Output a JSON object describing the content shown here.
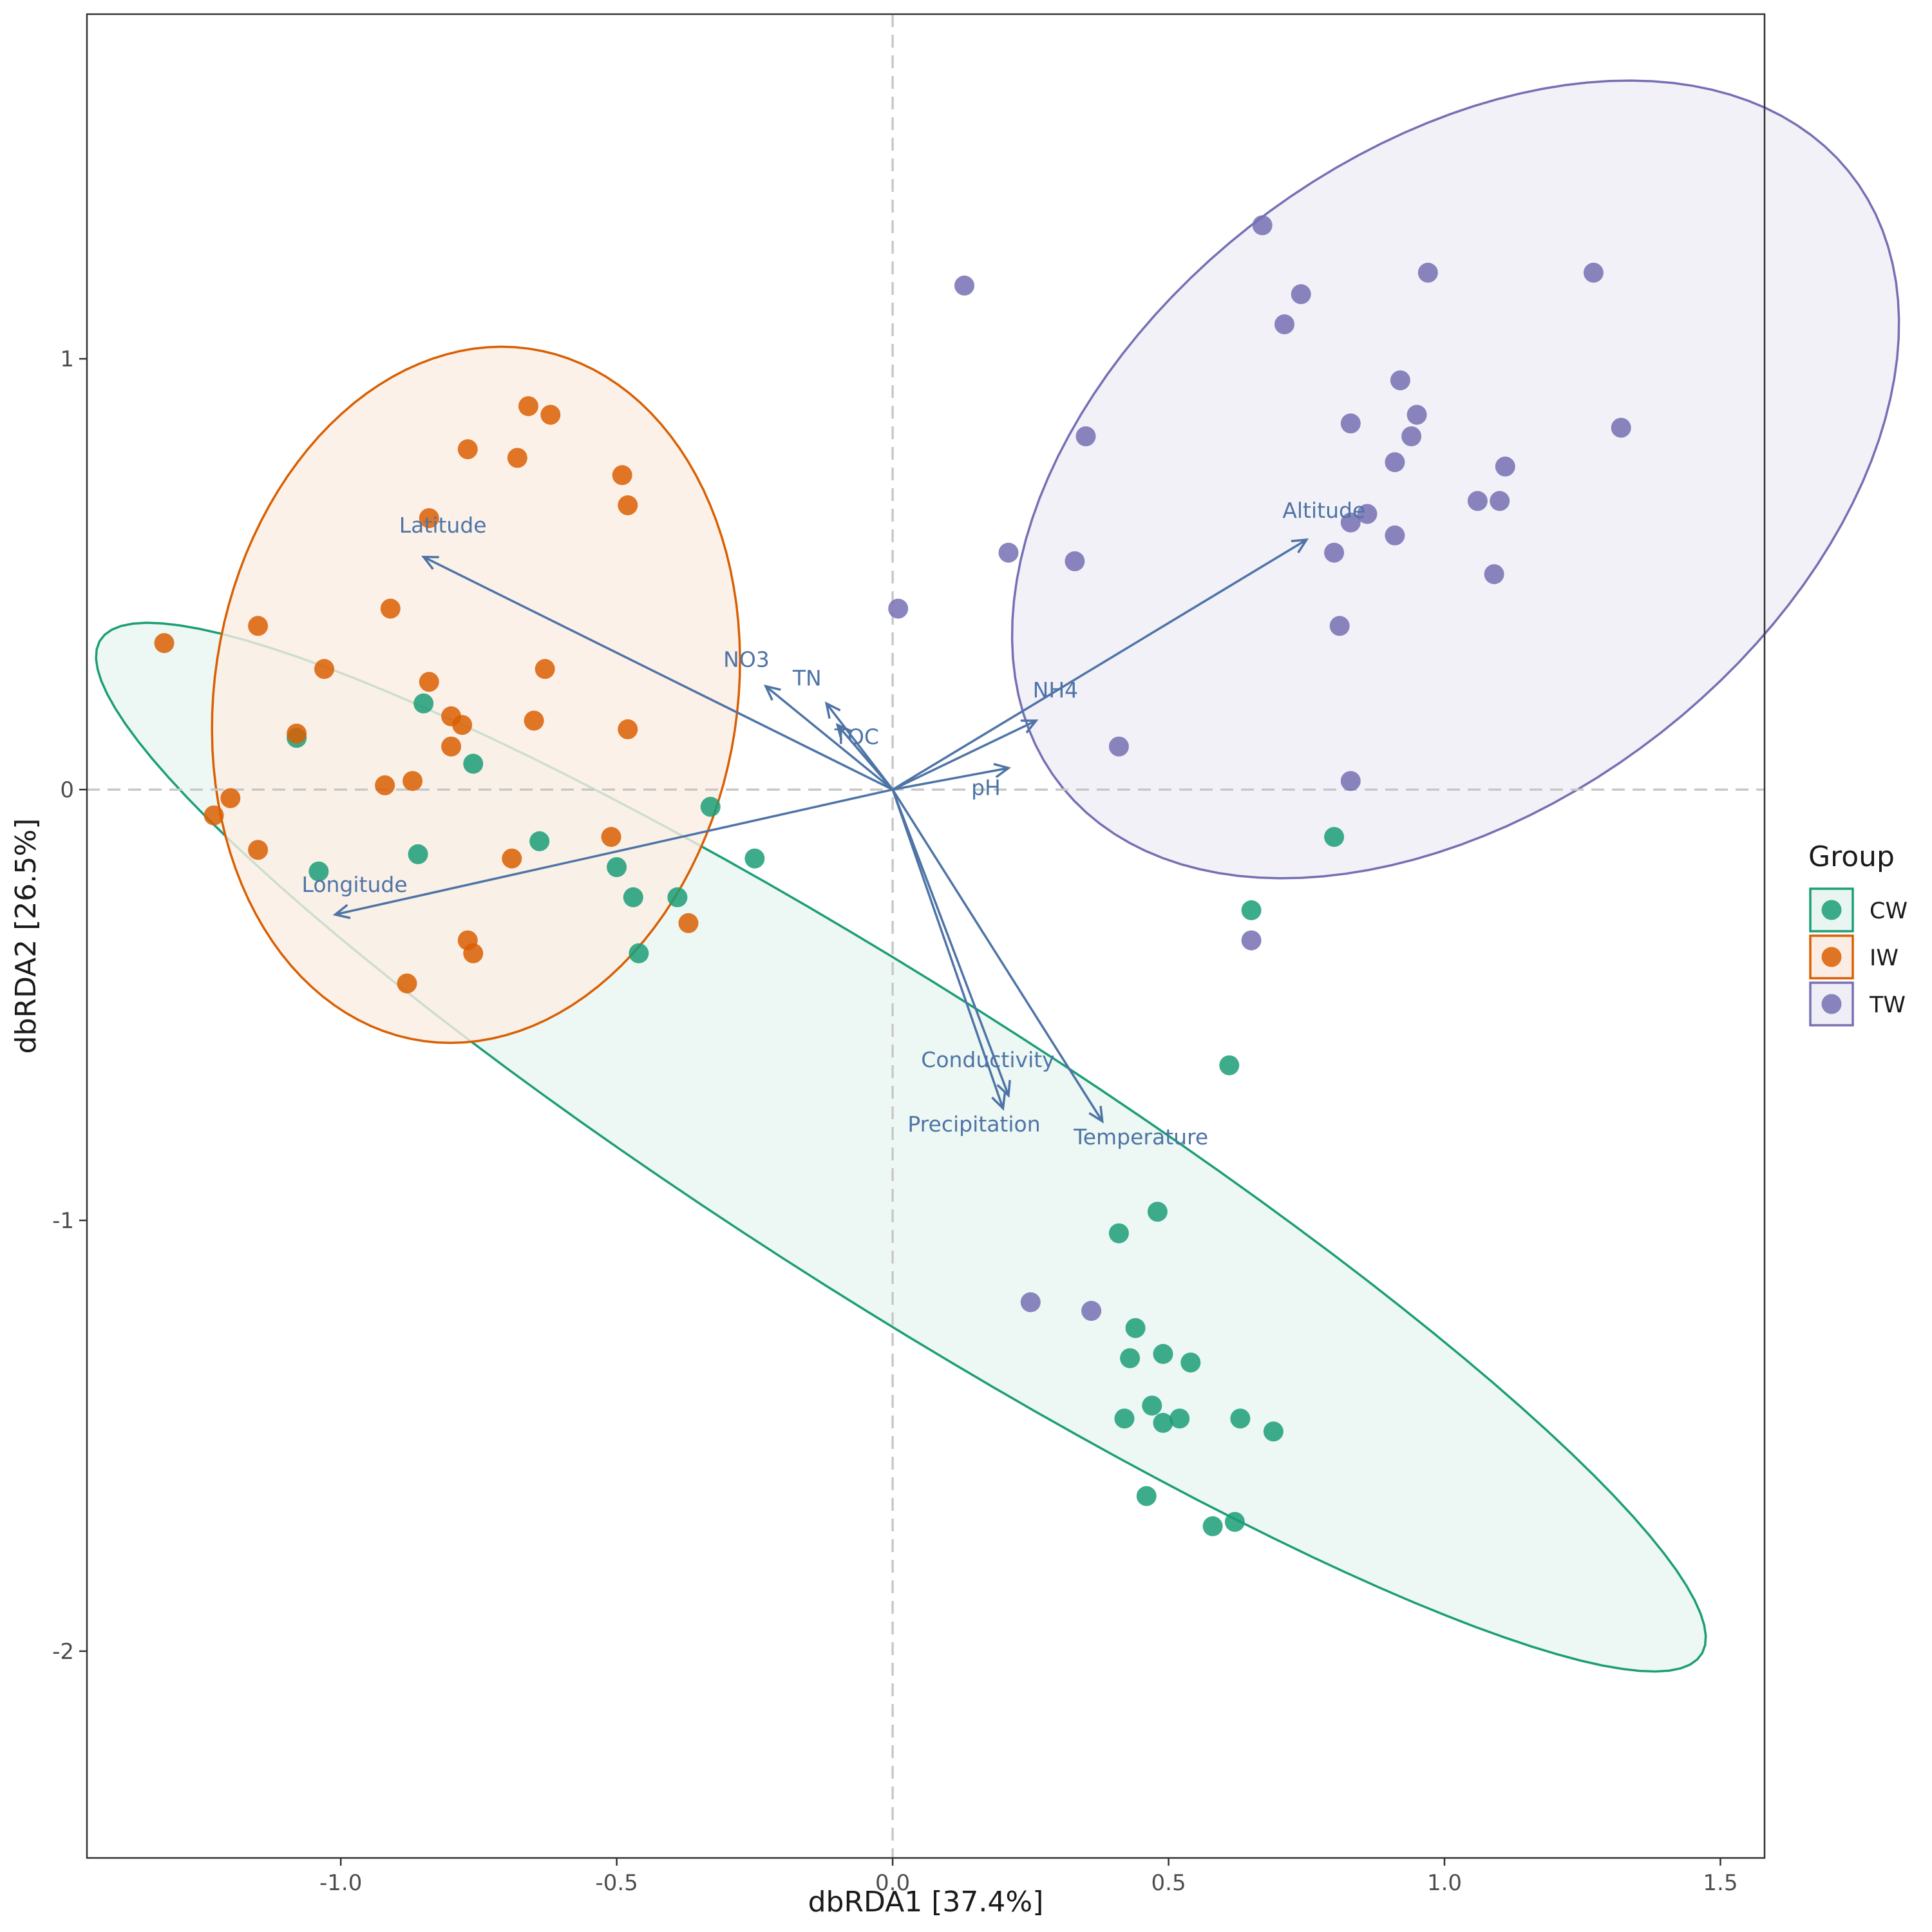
{
  "chart_data": {
    "type": "scatter",
    "subtype": "dbRDA biplot with group confidence ellipses and environmental vectors",
    "xlabel": "dbRDA1 [37.4%]",
    "ylabel": "dbRDA2 [26.5%]",
    "xlim": [
      -1.46,
      1.58
    ],
    "ylim": [
      -2.48,
      1.8
    ],
    "x_ticks": [
      -1.0,
      -0.5,
      0.0,
      0.5,
      1.0,
      1.5
    ],
    "x_tick_labels": [
      "-1.0",
      "-0.5",
      "0.0",
      "0.5",
      "1.0",
      "1.5"
    ],
    "y_ticks": [
      1,
      0,
      -1,
      -2
    ],
    "y_tick_labels": [
      "1",
      "0",
      "-1",
      "-2"
    ],
    "reference_lines": {
      "x": 0,
      "y": 0,
      "style": "dashed",
      "color": "#c8c8c8"
    },
    "grid": false,
    "legend": {
      "title": "Group",
      "position": "right",
      "entries": [
        {
          "label": "CW",
          "color": "#1b9e77",
          "fill": "#e8f5f0"
        },
        {
          "label": "IW",
          "color": "#d95f02",
          "fill": "#fbede3"
        },
        {
          "label": "TW",
          "color": "#7570b3",
          "fill": "#efeef6"
        }
      ]
    },
    "series": [
      {
        "name": "CW",
        "color": "#1b9e77",
        "points": [
          [
            -1.08,
            0.12
          ],
          [
            -0.85,
            0.2
          ],
          [
            -0.76,
            0.06
          ],
          [
            -1.04,
            -0.19
          ],
          [
            -0.86,
            -0.15
          ],
          [
            -0.64,
            -0.12
          ],
          [
            -0.5,
            -0.18
          ],
          [
            -0.47,
            -0.25
          ],
          [
            -0.39,
            -0.25
          ],
          [
            -0.33,
            -0.04
          ],
          [
            -0.25,
            -0.16
          ],
          [
            -0.46,
            -0.38
          ],
          [
            0.65,
            -0.28
          ],
          [
            0.8,
            -0.11
          ],
          [
            0.61,
            -0.64
          ],
          [
            0.48,
            -0.98
          ],
          [
            0.41,
            -1.03
          ],
          [
            0.44,
            -1.25
          ],
          [
            0.43,
            -1.32
          ],
          [
            0.49,
            -1.31
          ],
          [
            0.54,
            -1.33
          ],
          [
            0.47,
            -1.43
          ],
          [
            0.42,
            -1.46
          ],
          [
            0.49,
            -1.47
          ],
          [
            0.52,
            -1.46
          ],
          [
            0.63,
            -1.46
          ],
          [
            0.69,
            -1.49
          ],
          [
            0.46,
            -1.64
          ],
          [
            0.58,
            -1.71
          ],
          [
            0.62,
            -1.7
          ]
        ]
      },
      {
        "name": "IW",
        "color": "#d95f02",
        "points": [
          [
            -0.66,
            0.89
          ],
          [
            -0.62,
            0.87
          ],
          [
            -0.77,
            0.79
          ],
          [
            -0.68,
            0.77
          ],
          [
            -0.49,
            0.73
          ],
          [
            -0.48,
            0.66
          ],
          [
            -0.84,
            0.63
          ],
          [
            -1.32,
            0.34
          ],
          [
            -1.15,
            0.38
          ],
          [
            -0.91,
            0.42
          ],
          [
            -1.03,
            0.28
          ],
          [
            -0.84,
            0.25
          ],
          [
            -0.63,
            0.28
          ],
          [
            -0.8,
            0.17
          ],
          [
            -0.78,
            0.15
          ],
          [
            -0.65,
            0.16
          ],
          [
            -0.48,
            0.14
          ],
          [
            -1.08,
            0.13
          ],
          [
            -0.8,
            0.1
          ],
          [
            -0.92,
            0.01
          ],
          [
            -0.87,
            0.02
          ],
          [
            -1.2,
            -0.02
          ],
          [
            -1.23,
            -0.06
          ],
          [
            -1.15,
            -0.14
          ],
          [
            -0.51,
            -0.11
          ],
          [
            -0.69,
            -0.16
          ],
          [
            -0.77,
            -0.35
          ],
          [
            -0.76,
            -0.38
          ],
          [
            -0.37,
            -0.31
          ],
          [
            -0.88,
            -0.45
          ]
        ]
      },
      {
        "name": "TW",
        "color": "#7570b3",
        "points": [
          [
            0.67,
            1.31
          ],
          [
            0.13,
            1.17
          ],
          [
            0.74,
            1.15
          ],
          [
            0.97,
            1.2
          ],
          [
            1.27,
            1.2
          ],
          [
            0.71,
            1.08
          ],
          [
            0.92,
            0.95
          ],
          [
            0.83,
            0.85
          ],
          [
            0.95,
            0.87
          ],
          [
            0.94,
            0.82
          ],
          [
            0.35,
            0.82
          ],
          [
            1.32,
            0.84
          ],
          [
            0.91,
            0.76
          ],
          [
            1.11,
            0.75
          ],
          [
            1.06,
            0.67
          ],
          [
            1.1,
            0.67
          ],
          [
            0.86,
            0.64
          ],
          [
            0.83,
            0.62
          ],
          [
            0.91,
            0.59
          ],
          [
            0.21,
            0.55
          ],
          [
            0.8,
            0.55
          ],
          [
            0.33,
            0.53
          ],
          [
            1.09,
            0.5
          ],
          [
            0.01,
            0.42
          ],
          [
            0.81,
            0.38
          ],
          [
            0.41,
            0.1
          ],
          [
            0.83,
            0.02
          ],
          [
            0.65,
            -0.35
          ],
          [
            0.25,
            -1.19
          ],
          [
            0.36,
            -1.21
          ]
        ]
      }
    ],
    "ellipses": [
      {
        "group": "CW",
        "center": [
          0.015,
          -0.83
        ],
        "semi_axes": [
          1.87,
          0.335
        ],
        "angle_deg": -39.5
      },
      {
        "group": "IW",
        "center": [
          -0.755,
          0.22
        ],
        "semi_axes": [
          0.81,
          0.475
        ],
        "angle_deg": 85.0
      },
      {
        "group": "TW",
        "center": [
          1.02,
          0.72
        ],
        "semi_axes": [
          1.03,
          0.665
        ],
        "angle_deg": 55.0
      }
    ],
    "vectors": [
      {
        "label": "Latitude",
        "x": -0.85,
        "y": 0.54
      },
      {
        "label": "NO3",
        "x": -0.23,
        "y": 0.24
      },
      {
        "label": "TN",
        "x": -0.12,
        "y": 0.2
      },
      {
        "label": "TOC",
        "x": -0.1,
        "y": 0.15
      },
      {
        "label": "NH4",
        "x": 0.26,
        "y": 0.16
      },
      {
        "label": "pH",
        "x": 0.21,
        "y": 0.05
      },
      {
        "label": "Altitude",
        "x": 0.75,
        "y": 0.58
      },
      {
        "label": "Longitude",
        "x": -1.01,
        "y": -0.29
      },
      {
        "label": "Conductivity",
        "x": 0.21,
        "y": -0.71
      },
      {
        "label": "Precipitation",
        "x": 0.2,
        "y": -0.74
      },
      {
        "label": "Temperature",
        "x": 0.38,
        "y": -0.77
      }
    ]
  }
}
